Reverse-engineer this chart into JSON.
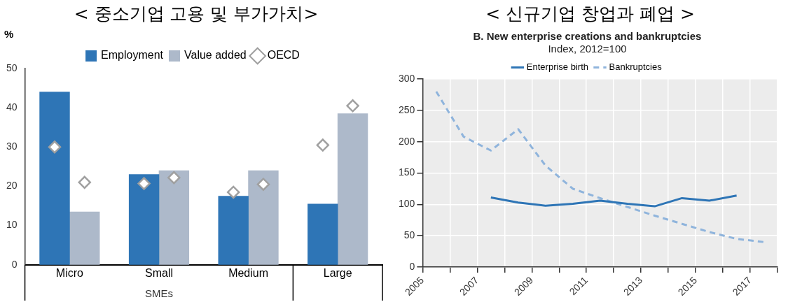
{
  "chart_data": [
    {
      "type": "bar",
      "title": "< 중소기업 고용 및 부가가치>",
      "ylabel": "%",
      "categories": [
        "Micro",
        "Small",
        "Medium",
        "Large"
      ],
      "series": [
        {
          "name": "Employment",
          "color": "#2e75b6",
          "values": [
            44,
            23,
            17.5,
            15.5
          ]
        },
        {
          "name": "Value added",
          "color": "#adb9ca",
          "values": [
            13.5,
            24,
            24,
            38.5
          ]
        },
        {
          "name": "OECD",
          "type": "scatter",
          "marker": "diamond",
          "color": "#a0a0a0",
          "x": [
            "Micro",
            "Micro",
            "Small",
            "Small",
            "Medium",
            "Medium",
            "Large",
            "Large"
          ],
          "values": [
            30,
            21,
            20.7,
            22.2,
            18.5,
            20.5,
            30.5,
            40.5
          ]
        }
      ],
      "ylim": [
        0,
        50
      ],
      "yticks": [
        0,
        10,
        20,
        30,
        40,
        50
      ],
      "grid": false,
      "legend": "top",
      "annotations": [
        "SMEs"
      ]
    },
    {
      "type": "line",
      "title": "< 신규기업 창업과 폐업 >",
      "subtitle": "B. New enterprise creations and bankruptcies",
      "annotations": [
        "Index, 2012=100"
      ],
      "series": [
        {
          "name": "Enterprise birth",
          "color": "#2e75b6",
          "line_style": "solid",
          "x": [
            2007.5,
            2008.5,
            2009.5,
            2010.5,
            2011.5,
            2012.5,
            2013.5,
            2014.5,
            2015.5,
            2016.5
          ],
          "values": [
            111,
            103,
            98,
            101,
            106,
            101,
            97,
            110,
            106,
            114
          ]
        },
        {
          "name": "Bankruptcies",
          "color": "#8fb4dc",
          "line_style": "dashed",
          "x": [
            2005.5,
            2006.5,
            2007.5,
            2008.5,
            2009.5,
            2010.5,
            2011.5,
            2012.5,
            2013.5,
            2014.5,
            2015.5,
            2016.5,
            2017.5
          ],
          "values": [
            280,
            208,
            186,
            220,
            162,
            125,
            110,
            96,
            82,
            69,
            56,
            45,
            40
          ]
        }
      ],
      "xlim": [
        2005,
        2018
      ],
      "xticks": [
        2005,
        {
          "value": 2006,
          "label": null
        },
        2007,
        {
          "value": 2008,
          "label": null
        },
        2009,
        {
          "value": 2010,
          "label": null
        },
        2011,
        {
          "value": 2012,
          "label": null
        },
        2013,
        {
          "value": 2014,
          "label": null
        },
        2015,
        {
          "value": 2016,
          "label": null
        },
        2017,
        {
          "value": 2018,
          "label": null
        }
      ],
      "ylim": [
        0,
        300
      ],
      "yticks": [
        0,
        50,
        100,
        150,
        200,
        250,
        300
      ],
      "grid": true,
      "legend": "top",
      "marker": "none"
    }
  ]
}
